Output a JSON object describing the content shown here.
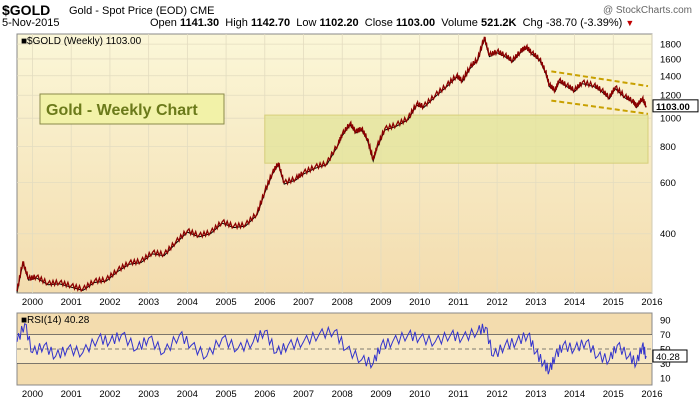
{
  "header": {
    "symbol": "$GOLD",
    "description": "Gold - Spot Price (EOD)",
    "exchange": "CME",
    "date": "5-Nov-2015",
    "open_label": "Open",
    "open": "1141.30",
    "high_label": "High",
    "high": "1142.70",
    "low_label": "Low",
    "low": "1102.20",
    "close_label": "Close",
    "close": "1103.00",
    "volume_label": "Volume",
    "volume": "521.2K",
    "chg_label": "Chg",
    "chg": "-38.70 (-3.39%)",
    "watermark": "@ StockCharts.com"
  },
  "colors": {
    "price_line": "#8b0000",
    "price_up": "#000000",
    "rsi_line": "#3333cc",
    "channel": "#c8a000",
    "support_box": "#e3e49a",
    "label_box_bg": "#f2f2a8",
    "label_text": "#6b7a1a",
    "panel_top": "#fbf7d8",
    "panel_bottom": "#f3dcae"
  },
  "chart_data": [
    {
      "type": "line",
      "legend": "$GOLD (Weekly) 1103.00",
      "annotation": "Gold - Weekly Chart",
      "last_value_label": "1103.00",
      "scale": "log",
      "ylim": [
        250,
        1950
      ],
      "y_ticks": [
        400,
        600,
        800,
        1000,
        1200,
        1400,
        1600,
        1800
      ],
      "x_ticks": [
        "2000",
        "2001",
        "2002",
        "2003",
        "2004",
        "2005",
        "2006",
        "2007",
        "2008",
        "2009",
        "2010",
        "2011",
        "2012",
        "2013",
        "2014",
        "2015",
        "2016"
      ],
      "xlim": [
        1999.6,
        2016.0
      ],
      "x": [
        1999.6,
        1999.75,
        1999.9,
        2000.1,
        2000.4,
        2000.7,
        2001.0,
        2001.3,
        2001.6,
        2001.9,
        2002.2,
        2002.5,
        2002.8,
        2003.1,
        2003.4,
        2003.7,
        2004.0,
        2004.3,
        2004.6,
        2004.9,
        2005.2,
        2005.5,
        2005.8,
        2006.0,
        2006.2,
        2006.35,
        2006.5,
        2006.8,
        2007.0,
        2007.3,
        2007.6,
        2007.9,
        2008.0,
        2008.2,
        2008.35,
        2008.5,
        2008.65,
        2008.8,
        2008.9,
        2009.1,
        2009.4,
        2009.7,
        2009.92,
        2010.1,
        2010.4,
        2010.7,
        2010.95,
        2011.1,
        2011.3,
        2011.5,
        2011.67,
        2011.8,
        2012.0,
        2012.2,
        2012.4,
        2012.6,
        2012.75,
        2012.9,
        2013.1,
        2013.25,
        2013.35,
        2013.5,
        2013.6,
        2013.8,
        2014.0,
        2014.2,
        2014.5,
        2014.7,
        2014.9,
        2015.05,
        2015.3,
        2015.5,
        2015.6,
        2015.75,
        2015.85
      ],
      "values": [
        254,
        320,
        280,
        285,
        270,
        272,
        265,
        258,
        275,
        278,
        300,
        318,
        322,
        345,
        340,
        375,
        410,
        395,
        405,
        440,
        425,
        430,
        470,
        560,
        650,
        700,
        600,
        620,
        650,
        680,
        700,
        820,
        880,
        960,
        900,
        920,
        850,
        720,
        800,
        920,
        950,
        1000,
        1120,
        1100,
        1200,
        1300,
        1400,
        1350,
        1500,
        1600,
        1900,
        1650,
        1700,
        1650,
        1580,
        1700,
        1760,
        1680,
        1600,
        1450,
        1300,
        1250,
        1350,
        1300,
        1250,
        1330,
        1300,
        1250,
        1180,
        1280,
        1190,
        1150,
        1100,
        1170,
        1103
      ],
      "channel_upper": {
        "x": [
          2013.4,
          2016.0
        ],
        "values": [
          1450,
          1290
        ]
      },
      "channel_lower": {
        "x": [
          2013.4,
          2016.0
        ],
        "values": [
          1150,
          1035
        ]
      },
      "support_zone": {
        "x": [
          2006.0,
          2016.0
        ],
        "values": [
          700,
          1025
        ]
      }
    },
    {
      "type": "line",
      "legend": "RSI(14) 40.28",
      "last_value_label": "40.28",
      "ylim": [
        0,
        100
      ],
      "y_ticks": [
        10,
        30,
        50,
        70,
        90
      ],
      "reference_lines": [
        30,
        50,
        70
      ],
      "x_ticks": [
        "2000",
        "2001",
        "2002",
        "2003",
        "2004",
        "2005",
        "2006",
        "2007",
        "2008",
        "2009",
        "2010",
        "2011",
        "2012",
        "2013",
        "2014",
        "2015",
        "2016"
      ],
      "xlim": [
        1999.6,
        2016.0
      ],
      "x": [
        1999.6,
        1999.8,
        2000.0,
        2000.3,
        2000.6,
        2000.9,
        2001.3,
        2001.7,
        2002.0,
        2002.3,
        2002.7,
        2003.0,
        2003.4,
        2003.8,
        2004.1,
        2004.5,
        2004.9,
        2005.3,
        2005.7,
        2006.0,
        2006.3,
        2006.6,
        2007.0,
        2007.4,
        2007.8,
        2008.1,
        2008.5,
        2008.8,
        2009.0,
        2009.3,
        2009.7,
        2010.0,
        2010.4,
        2010.8,
        2011.1,
        2011.5,
        2011.7,
        2011.9,
        2012.2,
        2012.5,
        2012.8,
        2013.0,
        2013.2,
        2013.35,
        2013.5,
        2013.7,
        2014.0,
        2014.3,
        2014.6,
        2014.9,
        2015.1,
        2015.4,
        2015.6,
        2015.75,
        2015.85
      ],
      "values": [
        60,
        85,
        45,
        55,
        40,
        50,
        45,
        65,
        60,
        70,
        50,
        65,
        45,
        70,
        55,
        40,
        65,
        50,
        60,
        75,
        45,
        55,
        60,
        70,
        75,
        50,
        35,
        30,
        55,
        60,
        70,
        65,
        60,
        70,
        65,
        75,
        80,
        40,
        55,
        60,
        70,
        45,
        30,
        20,
        40,
        55,
        50,
        60,
        40,
        35,
        55,
        40,
        30,
        55,
        40.28
      ]
    }
  ]
}
